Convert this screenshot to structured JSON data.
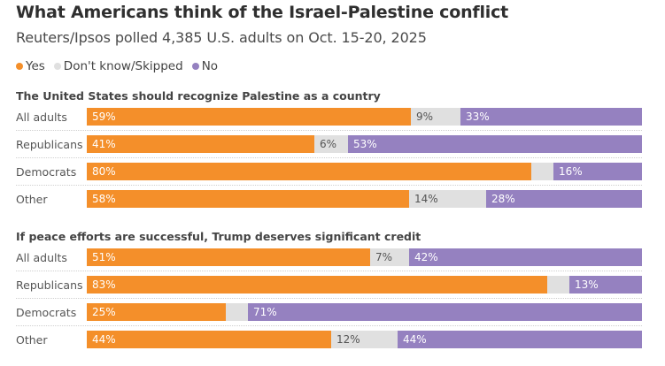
{
  "title": "What Americans think of the Israel-Palestine conflict",
  "subtitle": "Reuters/Ipsos polled 4,385 U.S. adults on Oct. 15-20, 2025",
  "legend": [
    {
      "label": "Yes",
      "color": "#f48f2a"
    },
    {
      "label": "Don't know/Skipped",
      "color": "#e0e0e0"
    },
    {
      "label": "No",
      "color": "#9581c0"
    }
  ],
  "chart_data": [
    {
      "type": "bar",
      "stacked": true,
      "orientation": "horizontal",
      "title": "The United States should recognize Palestine as a country",
      "categories": [
        "All adults",
        "Republicans",
        "Democrats",
        "Other"
      ],
      "series": [
        {
          "name": "Yes",
          "color": "#f48f2a",
          "values": [
            59,
            41,
            80,
            58
          ],
          "labels": [
            "59%",
            "41%",
            "80%",
            "58%"
          ]
        },
        {
          "name": "Don't know/Skipped",
          "color": "#e0e0e0",
          "values": [
            9,
            6,
            4,
            14
          ],
          "labels": [
            "9%",
            "6%",
            "",
            "14%"
          ]
        },
        {
          "name": "No",
          "color": "#9581c0",
          "values": [
            33,
            53,
            16,
            28
          ],
          "labels": [
            "33%",
            "53%",
            "16%",
            "28%"
          ]
        }
      ],
      "xlim": [
        0,
        100
      ],
      "legend": "top-left"
    },
    {
      "type": "bar",
      "stacked": true,
      "orientation": "horizontal",
      "title": "If peace efforts are successful, Trump deserves significant credit",
      "categories": [
        "All adults",
        "Republicans",
        "Democrats",
        "Other"
      ],
      "series": [
        {
          "name": "Yes",
          "color": "#f48f2a",
          "values": [
            51,
            83,
            25,
            44
          ],
          "labels": [
            "51%",
            "83%",
            "25%",
            "44%"
          ]
        },
        {
          "name": "Don't know/Skipped",
          "color": "#e0e0e0",
          "values": [
            7,
            4,
            4,
            12
          ],
          "labels": [
            "7%",
            "",
            "",
            "12%"
          ]
        },
        {
          "name": "No",
          "color": "#9581c0",
          "values": [
            42,
            13,
            71,
            44
          ],
          "labels": [
            "42%",
            "13%",
            "71%",
            "44%"
          ]
        }
      ],
      "xlim": [
        0,
        100
      ],
      "legend": "top-left"
    }
  ]
}
